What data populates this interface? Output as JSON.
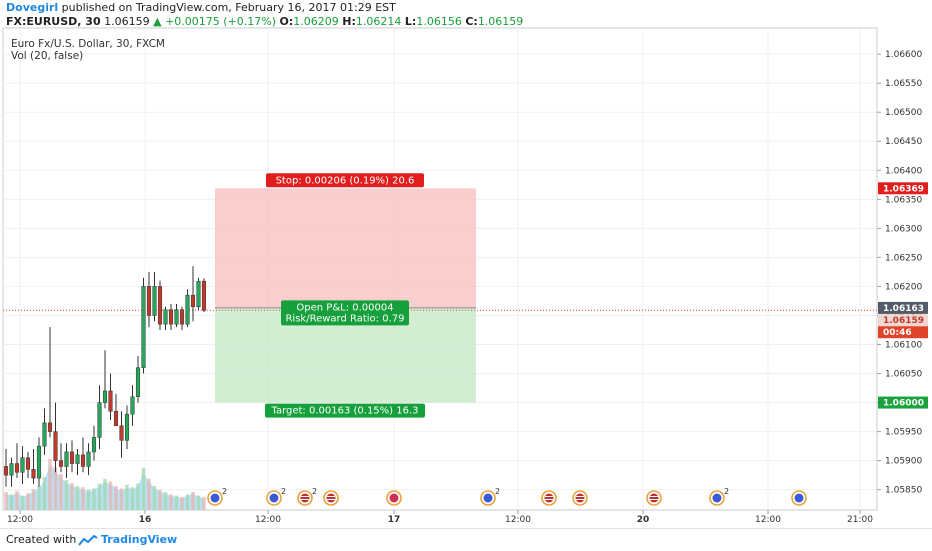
{
  "header": {
    "author": "Dovegirl",
    "published": "published on TradingView.com, February 16, 2017 01:29 EST",
    "symbol": "FX:EURUSD, 30",
    "price": "1.06159",
    "change": "+0.00175 (+0.17%)",
    "ohlc": {
      "o_label": "O:",
      "o": "1.06209",
      "h_label": "H:",
      "h": "1.06214",
      "l_label": "L:",
      "l": "1.06156",
      "c_label": "C:",
      "c": "1.06159"
    }
  },
  "legend": {
    "instrument": "Euro Fx/U.S. Dollar, 30, FXCM",
    "indicator": "Vol (20, false)"
  },
  "footer": {
    "created_with": "Created with",
    "brand": "TradingView"
  },
  "colors": {
    "up": "#26a65b",
    "down": "#c0392b",
    "stop_zone": "#f8b9b9",
    "target_zone": "#bfe6bf",
    "stop_label": "#e01e1e",
    "target_label": "#16a03c",
    "price_line": "#e0452b"
  },
  "chart_data": {
    "type": "candlestick",
    "symbol": "EURUSD",
    "timeframe": "30",
    "ylim": [
      1.05815,
      1.06645
    ],
    "y_ticks": [
      "1.06600",
      "1.06550",
      "1.06500",
      "1.06450",
      "1.06400",
      "1.06350",
      "1.06300",
      "1.06250",
      "1.06200",
      "1.06150",
      "1.06100",
      "1.06050",
      "1.06000",
      "1.05950",
      "1.05900",
      "1.05850"
    ],
    "x_ticks": [
      "12:00",
      "16",
      "12:00",
      "17",
      "12:00",
      "20",
      "12:00",
      "21:00"
    ],
    "candles": [
      {
        "o": 1.0589,
        "h": 1.0592,
        "l": 1.05855,
        "c": 1.05875
      },
      {
        "o": 1.05875,
        "h": 1.05905,
        "l": 1.05855,
        "c": 1.05895
      },
      {
        "o": 1.05895,
        "h": 1.0593,
        "l": 1.0587,
        "c": 1.0588
      },
      {
        "o": 1.0588,
        "h": 1.05925,
        "l": 1.0586,
        "c": 1.05905
      },
      {
        "o": 1.05905,
        "h": 1.05915,
        "l": 1.0587,
        "c": 1.05885
      },
      {
        "o": 1.05885,
        "h": 1.0592,
        "l": 1.0586,
        "c": 1.0587
      },
      {
        "o": 1.0587,
        "h": 1.0594,
        "l": 1.05855,
        "c": 1.05925
      },
      {
        "o": 1.05925,
        "h": 1.0599,
        "l": 1.0591,
        "c": 1.05965
      },
      {
        "o": 1.05965,
        "h": 1.0613,
        "l": 1.0594,
        "c": 1.0595
      },
      {
        "o": 1.0595,
        "h": 1.06,
        "l": 1.0588,
        "c": 1.059
      },
      {
        "o": 1.059,
        "h": 1.0593,
        "l": 1.0588,
        "c": 1.0589
      },
      {
        "o": 1.0589,
        "h": 1.0593,
        "l": 1.0587,
        "c": 1.05915
      },
      {
        "o": 1.05915,
        "h": 1.05935,
        "l": 1.0588,
        "c": 1.05895
      },
      {
        "o": 1.05895,
        "h": 1.0592,
        "l": 1.05875,
        "c": 1.0591
      },
      {
        "o": 1.0591,
        "h": 1.0594,
        "l": 1.0588,
        "c": 1.0589
      },
      {
        "o": 1.0589,
        "h": 1.0593,
        "l": 1.05875,
        "c": 1.05915
      },
      {
        "o": 1.05915,
        "h": 1.0596,
        "l": 1.059,
        "c": 1.0594
      },
      {
        "o": 1.0594,
        "h": 1.0603,
        "l": 1.0592,
        "c": 1.06
      },
      {
        "o": 1.06,
        "h": 1.0609,
        "l": 1.0599,
        "c": 1.0602
      },
      {
        "o": 1.0602,
        "h": 1.0605,
        "l": 1.0597,
        "c": 1.05985
      },
      {
        "o": 1.05985,
        "h": 1.06015,
        "l": 1.0596,
        "c": 1.0596
      },
      {
        "o": 1.0596,
        "h": 1.05985,
        "l": 1.05905,
        "c": 1.05935
      },
      {
        "o": 1.05935,
        "h": 1.05995,
        "l": 1.0592,
        "c": 1.0598
      },
      {
        "o": 1.0598,
        "h": 1.0603,
        "l": 1.0596,
        "c": 1.0601
      },
      {
        "o": 1.0601,
        "h": 1.0608,
        "l": 1.06,
        "c": 1.0606
      },
      {
        "o": 1.0606,
        "h": 1.06215,
        "l": 1.0605,
        "c": 1.062
      },
      {
        "o": 1.062,
        "h": 1.06225,
        "l": 1.0613,
        "c": 1.0615
      },
      {
        "o": 1.0615,
        "h": 1.06225,
        "l": 1.0614,
        "c": 1.062
      },
      {
        "o": 1.062,
        "h": 1.0621,
        "l": 1.06125,
        "c": 1.06135
      },
      {
        "o": 1.06135,
        "h": 1.06165,
        "l": 1.06125,
        "c": 1.0616
      },
      {
        "o": 1.0616,
        "h": 1.0617,
        "l": 1.06125,
        "c": 1.06135
      },
      {
        "o": 1.06135,
        "h": 1.0617,
        "l": 1.0613,
        "c": 1.0616
      },
      {
        "o": 1.0616,
        "h": 1.06165,
        "l": 1.06125,
        "c": 1.06135
      },
      {
        "o": 1.06135,
        "h": 1.06195,
        "l": 1.0613,
        "c": 1.06185
      },
      {
        "o": 1.06185,
        "h": 1.06235,
        "l": 1.0614,
        "c": 1.06165
      },
      {
        "o": 1.06165,
        "h": 1.06215,
        "l": 1.0616,
        "c": 1.06209
      },
      {
        "o": 1.06209,
        "h": 1.06214,
        "l": 1.06156,
        "c": 1.06159
      }
    ],
    "volume_rel": [
      0.3,
      0.26,
      0.32,
      0.24,
      0.28,
      0.35,
      0.4,
      0.55,
      0.85,
      0.72,
      0.6,
      0.5,
      0.45,
      0.4,
      0.38,
      0.34,
      0.36,
      0.44,
      0.52,
      0.48,
      0.4,
      0.36,
      0.42,
      0.38,
      0.44,
      0.7,
      0.52,
      0.4,
      0.34,
      0.3,
      0.26,
      0.24,
      0.22,
      0.26,
      0.3,
      0.24,
      0.22
    ],
    "position": {
      "entry": 1.06163,
      "stop": 1.06369,
      "target": 1.06,
      "stop_text": "Stop: 0.00206 (0.19%) 20.6",
      "pnl_text": "Open P&L: 0.00004",
      "rr_text": "Risk/Reward Ratio: 0.79",
      "target_text": "Target: 0.00163 (0.15%) 16.3"
    },
    "price_labels": {
      "stop": "1.06369",
      "entry": "1.06163",
      "last": "1.06159",
      "countdown": "00:46",
      "target": "1.06000"
    },
    "events": [
      {
        "flag": "eu",
        "count": "2"
      },
      {
        "flag": "eu",
        "count": "2"
      },
      {
        "flag": "us",
        "count": "2"
      },
      {
        "flag": "us",
        "count": ""
      },
      {
        "flag": "jp",
        "count": ""
      },
      {
        "flag": "eu",
        "count": "2"
      },
      {
        "flag": "us",
        "count": ""
      },
      {
        "flag": "us",
        "count": ""
      },
      {
        "flag": "us",
        "count": ""
      },
      {
        "flag": "eu",
        "count": "2"
      },
      {
        "flag": "eu",
        "count": ""
      }
    ]
  }
}
